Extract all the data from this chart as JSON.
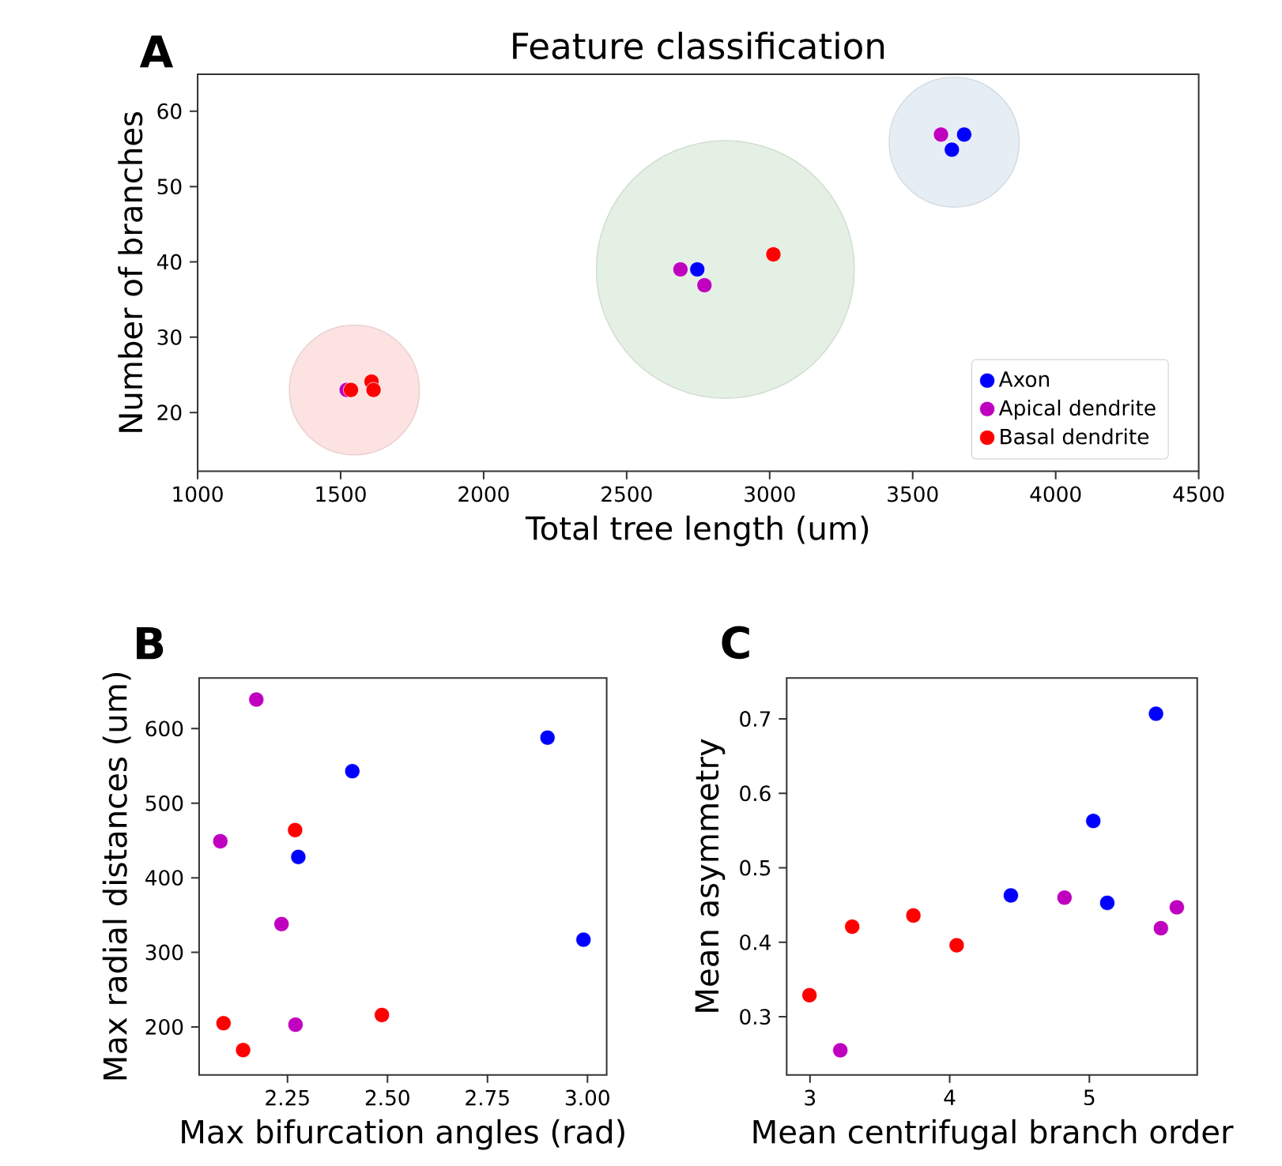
{
  "chart_data": [
    {
      "type": "scatter",
      "title": "Feature classification",
      "xlabel": "Total tree length (um)",
      "ylabel": "Number of branches",
      "annotations": [
        "A"
      ],
      "xlim": [
        1000,
        4500
      ],
      "ylim": [
        12.2,
        64.9
      ],
      "xticks": [
        1000,
        1500,
        2000,
        2500,
        3000,
        3500,
        4000,
        4500
      ],
      "yticks": [
        20,
        30,
        40,
        50,
        60
      ],
      "grid": false,
      "legend": "bottom right",
      "marker": "circle",
      "series": [
        {
          "type": "bubble",
          "x": [
            1548,
            2845,
            3645
          ],
          "values": [
            23,
            39,
            55.9
          ],
          "sizes": [
            0.254,
            1,
            0.254
          ],
          "colors": [
            "#fde2e2",
            "#e3f0e3",
            "#e6eef5"
          ]
        },
        {
          "name": "Axon",
          "color": "#0000ff",
          "x": [
            2747,
            3680,
            3637
          ],
          "values": [
            39,
            56.9,
            54.9
          ]
        },
        {
          "name": "Apical dendrite",
          "color": "#bf00bf",
          "x": [
            1521,
            2688,
            2772,
            3599
          ],
          "values": [
            23,
            39,
            36.9,
            56.9
          ]
        },
        {
          "name": "Basal dendrite",
          "color": "#ff0000",
          "x": [
            1536,
            1608,
            1615,
            3013
          ],
          "values": [
            23,
            24.1,
            23,
            41
          ]
        }
      ]
    },
    {
      "type": "scatter",
      "xlabel": "Max bifurcation angles (rad)",
      "ylabel": "Max radial distances (um)",
      "annotations": [
        "B"
      ],
      "xlim": [
        2.029,
        3.048
      ],
      "ylim": [
        135.7,
        668
      ],
      "xticks": [
        {
          "value": 2.25,
          "label": "2.25"
        },
        {
          "value": 2.5,
          "label": "2.50"
        },
        {
          "value": 2.75,
          "label": "2.75"
        },
        {
          "value": 3.0,
          "label": "3.00"
        }
      ],
      "yticks": [
        200,
        300,
        400,
        500,
        600
      ],
      "grid": false,
      "marker": "circle",
      "series": [
        {
          "color": "#0000ff",
          "x": [
            2.9,
            2.412,
            2.277,
            2.99
          ],
          "values": [
            588,
            543,
            428,
            317
          ]
        },
        {
          "color": "#bf00bf",
          "x": [
            2.172,
            2.082,
            2.235,
            2.27
          ],
          "values": [
            639,
            449,
            338,
            203
          ]
        },
        {
          "color": "#ff0000",
          "x": [
            2.269,
            2.09,
            2.486,
            2.139
          ],
          "values": [
            464,
            205,
            216,
            169
          ]
        }
      ]
    },
    {
      "type": "scatter",
      "xlabel": "Mean centrifugal branch order",
      "ylabel": "Mean asymmetry",
      "annotations": [
        "C"
      ],
      "xlim": [
        2.833,
        5.772
      ],
      "ylim": [
        0.222,
        0.755
      ],
      "xticks": [
        3,
        4,
        5
      ],
      "yticks": [
        {
          "value": 0.3,
          "label": "0.3"
        },
        {
          "value": 0.4,
          "label": "0.4"
        },
        {
          "value": 0.5,
          "label": "0.5"
        },
        {
          "value": 0.6,
          "label": "0.6"
        },
        {
          "value": 0.7,
          "label": "0.7"
        }
      ],
      "grid": false,
      "marker": "circle",
      "series": [
        {
          "color": "#0000ff",
          "x": [
            5.477,
            5.028,
            4.438,
            5.128
          ],
          "values": [
            0.707,
            0.563,
            0.463,
            0.453
          ]
        },
        {
          "color": "#bf00bf",
          "x": [
            4.822,
            5.626,
            5.512,
            3.217
          ],
          "values": [
            0.46,
            0.447,
            0.419,
            0.255
          ]
        },
        {
          "color": "#ff0000",
          "x": [
            3.302,
            3.74,
            4.05,
            2.996
          ],
          "values": [
            0.421,
            0.436,
            0.396,
            0.329
          ]
        }
      ]
    }
  ]
}
